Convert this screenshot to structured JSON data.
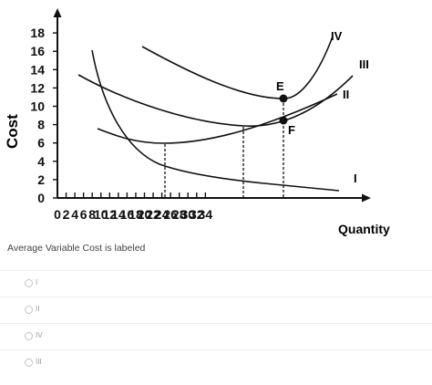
{
  "graph": {
    "y_axis_label": "Cost",
    "x_axis_label": "Quantity",
    "y_ticks": [
      "0",
      "2",
      "4",
      "6",
      "8",
      "10",
      "12",
      "14",
      "16",
      "18"
    ],
    "x_ticks": [
      "0",
      "2",
      "4",
      "6",
      "8",
      "10",
      "12",
      "14",
      "16",
      "18",
      "20",
      "22",
      "24",
      "26",
      "28",
      "30",
      "32",
      "34"
    ],
    "curve_labels": {
      "iv": "IV",
      "iii": "III",
      "ii": "II",
      "i": "I"
    },
    "point_labels": {
      "e": "E",
      "f": "F"
    }
  },
  "question": {
    "text": "Average Variable Cost is labeled"
  },
  "options": [
    {
      "label": "I"
    },
    {
      "label": "II"
    },
    {
      "label": "IV"
    },
    {
      "label": "III"
    }
  ],
  "colors": {
    "line": "#111111",
    "divider": "#ececec",
    "radio_border": "#c4c4c4",
    "option_text": "#999999"
  }
}
